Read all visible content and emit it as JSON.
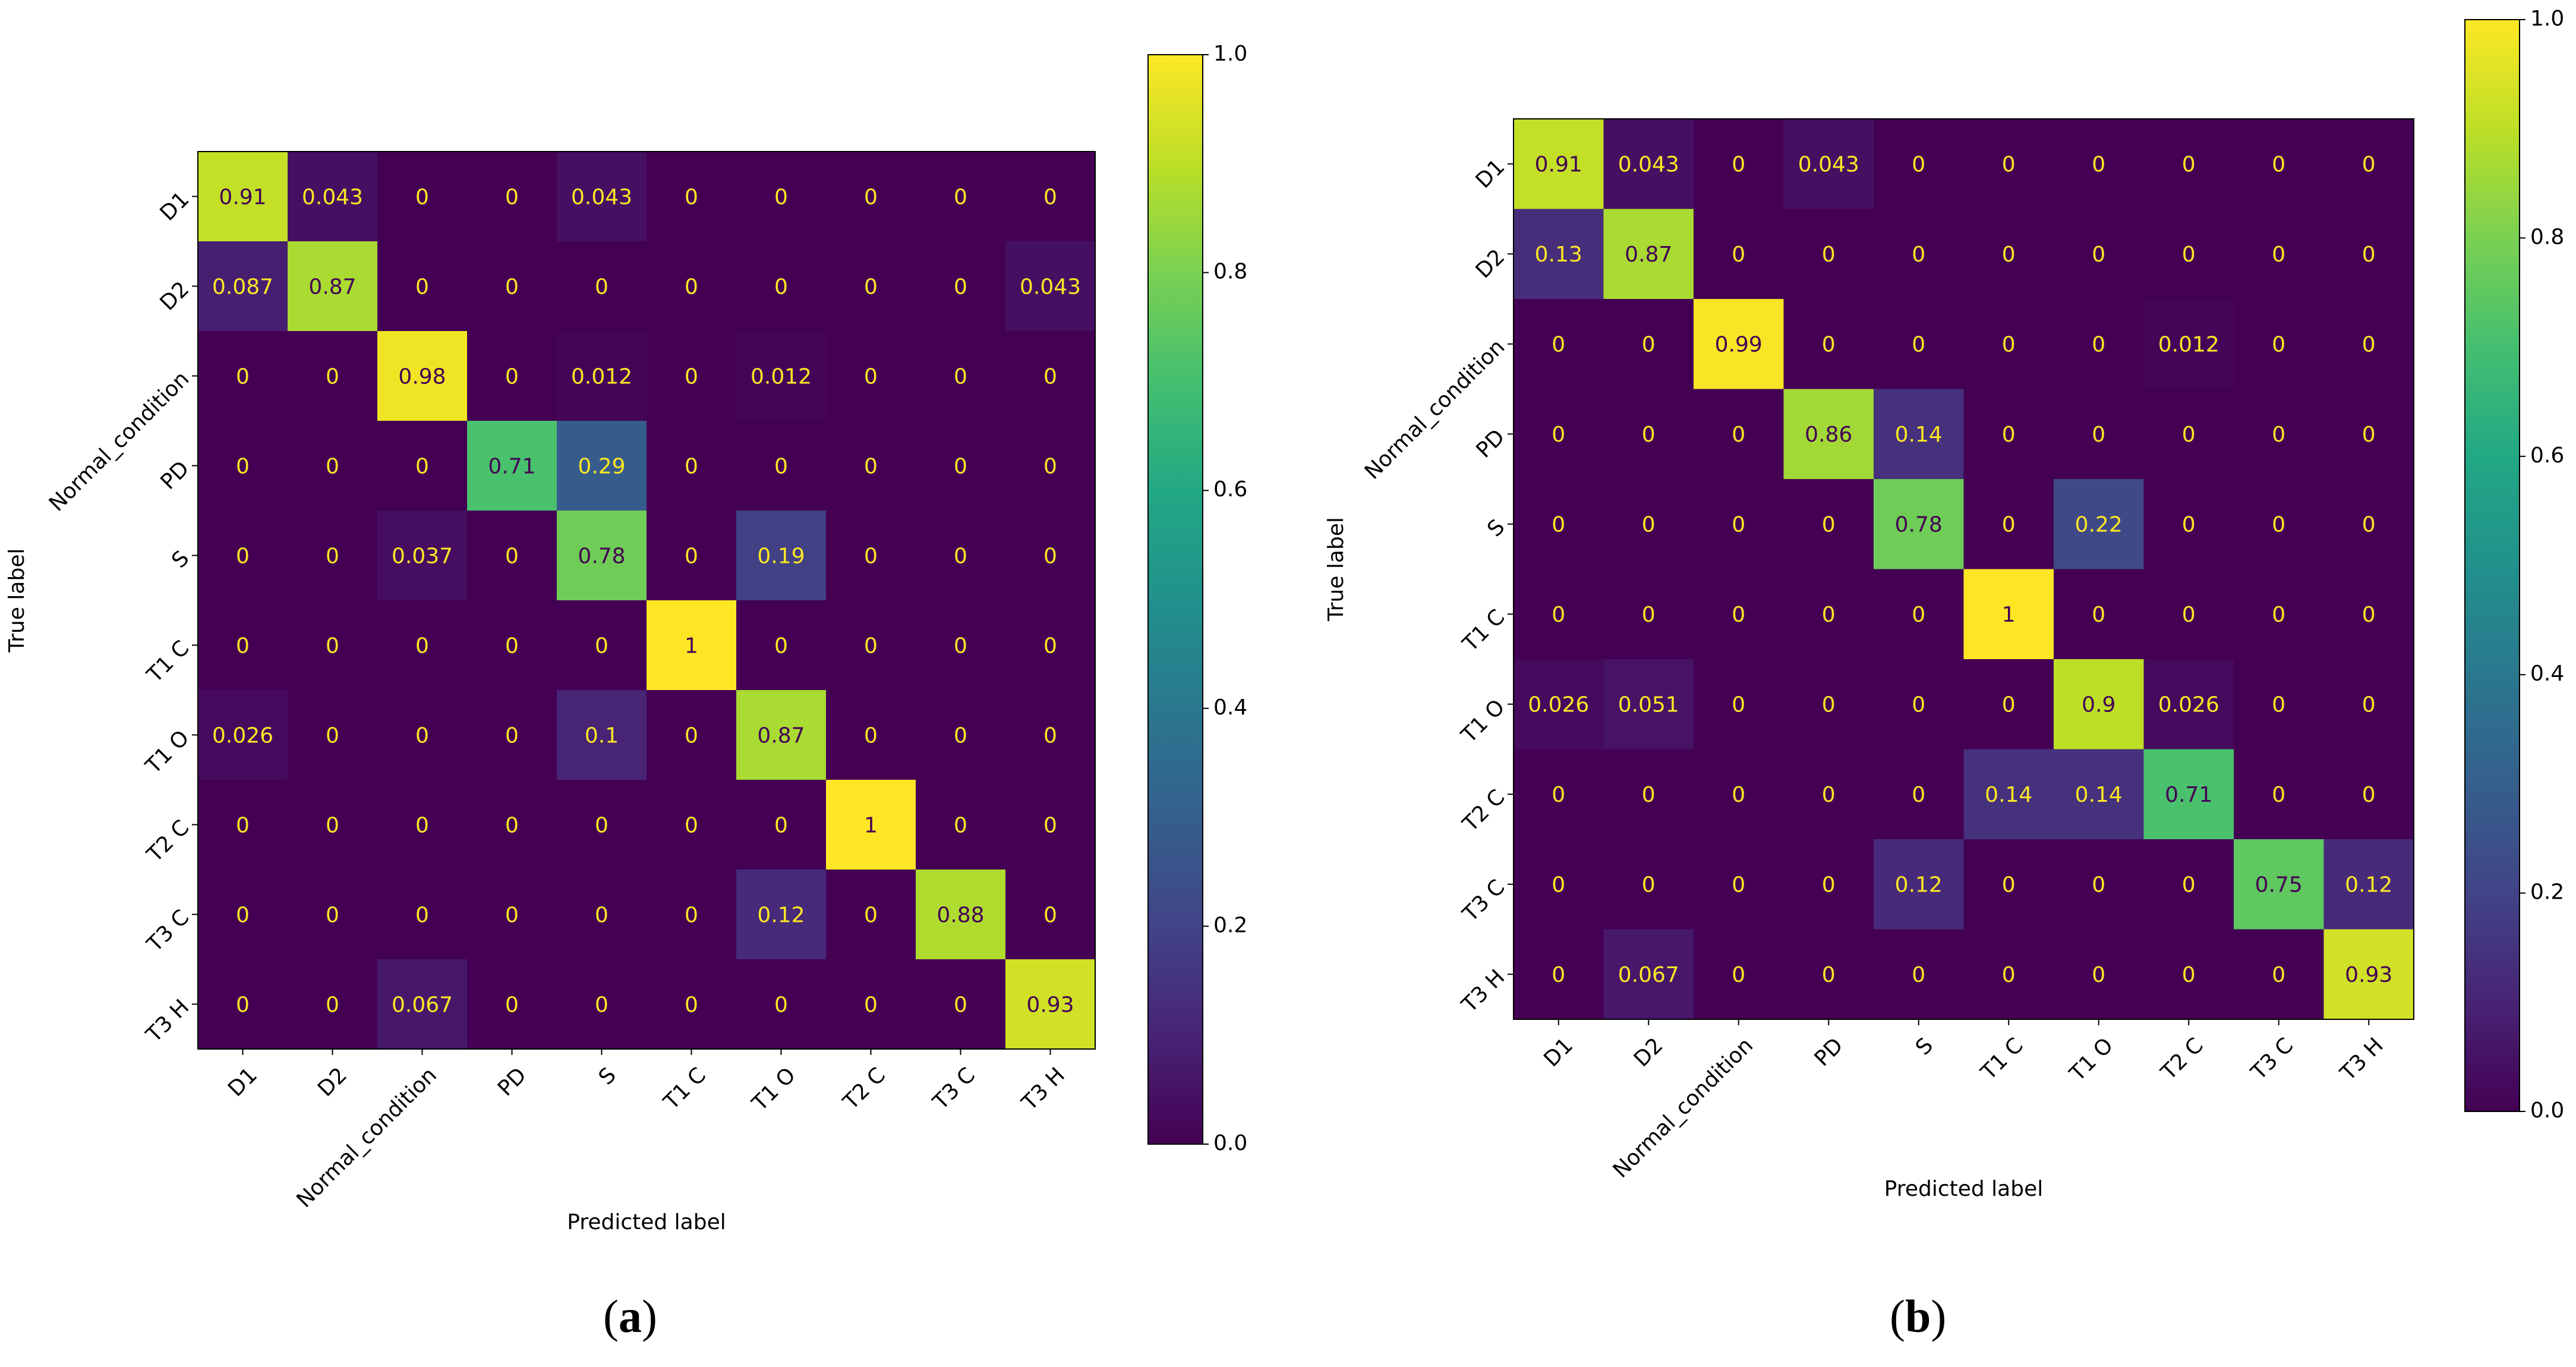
{
  "chart_data": [
    {
      "type": "heatmap",
      "caption": "a",
      "xlabel": "Predicted label",
      "ylabel": "True label",
      "row_labels": [
        "D1",
        "D2",
        "Normal_condition",
        "PD",
        "S",
        "T1 C",
        "T1 O",
        "T2 C",
        "T3 C",
        "T3 H"
      ],
      "col_labels": [
        "D1",
        "D2",
        "Normal_condition",
        "PD",
        "S",
        "T1 C",
        "T1 O",
        "T2 C",
        "T3 C",
        "T3 H"
      ],
      "cell_labels": [
        [
          "0.91",
          "0.043",
          "0",
          "0",
          "0.043",
          "0",
          "0",
          "0",
          "0",
          "0"
        ],
        [
          "0.087",
          "0.87",
          "0",
          "0",
          "0",
          "0",
          "0",
          "0",
          "0",
          "0.043"
        ],
        [
          "0",
          "0",
          "0.98",
          "0",
          "0.012",
          "0",
          "0.012",
          "0",
          "0",
          "0"
        ],
        [
          "0",
          "0",
          "0",
          "0.71",
          "0.29",
          "0",
          "0",
          "0",
          "0",
          "0"
        ],
        [
          "0",
          "0",
          "0.037",
          "0",
          "0.78",
          "0",
          "0.19",
          "0",
          "0",
          "0"
        ],
        [
          "0",
          "0",
          "0",
          "0",
          "0",
          "1",
          "0",
          "0",
          "0",
          "0"
        ],
        [
          "0.026",
          "0",
          "0",
          "0",
          "0.1",
          "0",
          "0.87",
          "0",
          "0",
          "0"
        ],
        [
          "0",
          "0",
          "0",
          "0",
          "0",
          "0",
          "0",
          "1",
          "0",
          "0"
        ],
        [
          "0",
          "0",
          "0",
          "0",
          "0",
          "0",
          "0.12",
          "0",
          "0.88",
          "0"
        ],
        [
          "0",
          "0",
          "0.067",
          "0",
          "0",
          "0",
          "0",
          "0",
          "0",
          "0.93"
        ]
      ],
      "colorbar": {
        "min": 0,
        "max": 1,
        "ticks": [
          "0.0",
          "0.2",
          "0.4",
          "0.6",
          "0.8",
          "1.0"
        ]
      },
      "colormap": "viridis"
    },
    {
      "type": "heatmap",
      "caption": "b",
      "xlabel": "Predicted label",
      "ylabel": "True label",
      "row_labels": [
        "D1",
        "D2",
        "Normal_condition",
        "PD",
        "S",
        "T1 C",
        "T1 O",
        "T2 C",
        "T3 C",
        "T3 H"
      ],
      "col_labels": [
        "D1",
        "D2",
        "Normal_condition",
        "PD",
        "S",
        "T1 C",
        "T1 O",
        "T2 C",
        "T3 C",
        "T3 H"
      ],
      "cell_labels": [
        [
          "0.91",
          "0.043",
          "0",
          "0.043",
          "0",
          "0",
          "0",
          "0",
          "0",
          "0"
        ],
        [
          "0.13",
          "0.87",
          "0",
          "0",
          "0",
          "0",
          "0",
          "0",
          "0",
          "0"
        ],
        [
          "0",
          "0",
          "0.99",
          "0",
          "0",
          "0",
          "0",
          "0.012",
          "0",
          "0"
        ],
        [
          "0",
          "0",
          "0",
          "0.86",
          "0.14",
          "0",
          "0",
          "0",
          "0",
          "0"
        ],
        [
          "0",
          "0",
          "0",
          "0",
          "0.78",
          "0",
          "0.22",
          "0",
          "0",
          "0"
        ],
        [
          "0",
          "0",
          "0",
          "0",
          "0",
          "1",
          "0",
          "0",
          "0",
          "0"
        ],
        [
          "0.026",
          "0.051",
          "0",
          "0",
          "0",
          "0",
          "0.9",
          "0.026",
          "0",
          "0"
        ],
        [
          "0",
          "0",
          "0",
          "0",
          "0",
          "0.14",
          "0.14",
          "0.71",
          "0",
          "0"
        ],
        [
          "0",
          "0",
          "0",
          "0",
          "0.12",
          "0",
          "0",
          "0",
          "0.75",
          "0.12"
        ],
        [
          "0",
          "0.067",
          "0",
          "0",
          "0",
          "0",
          "0",
          "0",
          "0",
          "0.93"
        ]
      ],
      "colorbar": {
        "min": 0,
        "max": 1,
        "ticks": [
          "0.0",
          "0.2",
          "0.4",
          "0.6",
          "0.8",
          "1.0"
        ]
      },
      "colormap": "viridis"
    }
  ],
  "captions": [
    "(a)",
    "(b)"
  ],
  "colors": {
    "low_text": "#fde725",
    "high_text": "#440154",
    "frame": "#000000"
  }
}
